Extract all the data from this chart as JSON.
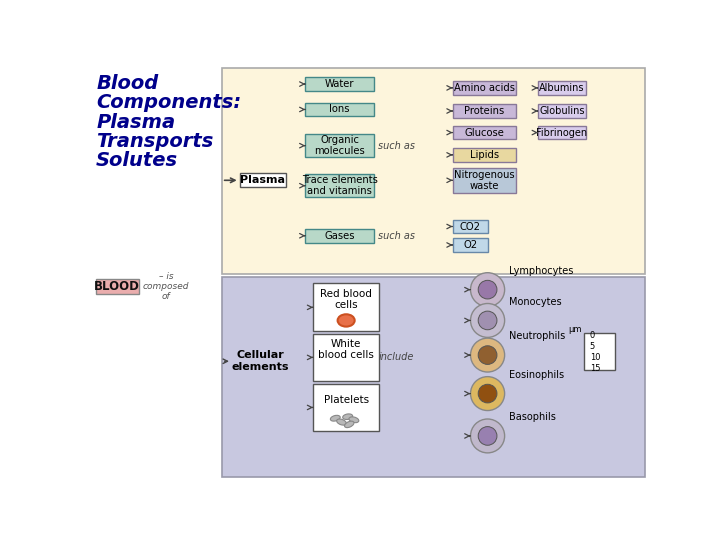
{
  "bg_top": "#fdf5dc",
  "bg_bottom": "#c8c8e0",
  "title_color": "#00008B",
  "title_lines": [
    "Blood",
    "Components:",
    "Plasma",
    "Transports",
    "Solutes"
  ],
  "plasma_items": [
    "Water",
    "Ions",
    "Organic\nmolecules",
    "Trace elements\nand vitamins",
    "Gases"
  ],
  "plasma_box_fc": "#b8d8c8",
  "plasma_box_ec": "#448888",
  "organic_items": [
    "Amino acids",
    "Proteins",
    "Glucose",
    "Lipids",
    "Nitrogenous\nwaste"
  ],
  "organic_fc": [
    "#c8b8d8",
    "#c8b8d8",
    "#c8b8d8",
    "#e8d8a0",
    "#b8c8d8"
  ],
  "organic_ec": "#887898",
  "protein_items": [
    "Albumins",
    "Globulins",
    "Fibrinogen"
  ],
  "protein_fc": "#d8ccec",
  "protein_ec": "#887898",
  "gas_items": [
    "CO2",
    "O2"
  ],
  "gas_fc": "#c0d8e8",
  "gas_ec": "#6888a8",
  "blood_fc": "#eaadad",
  "line_color": "#555555",
  "arrow_color": "#555555"
}
